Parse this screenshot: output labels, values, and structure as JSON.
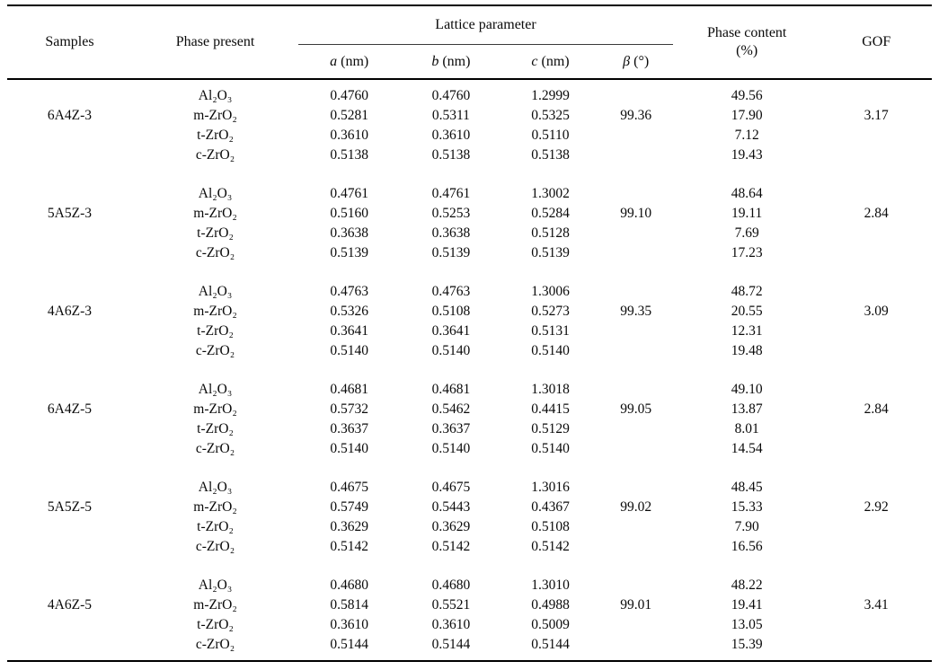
{
  "table": {
    "header": {
      "samples": "Samples",
      "phase_present": "Phase present",
      "lattice_group": "Lattice parameter",
      "lattice_cols": [
        {
          "symbol": "a",
          "unit": "(nm)"
        },
        {
          "symbol": "b",
          "unit": "(nm)"
        },
        {
          "symbol": "c",
          "unit": "(nm)"
        },
        {
          "symbol": "β",
          "unit": "(°)"
        }
      ],
      "phase_content_line1": "Phase content",
      "phase_content_line2": "(%)",
      "gof": "GOF"
    },
    "blocks": [
      {
        "sample": "6A4Z-3",
        "beta": "99.36",
        "gof": "3.17",
        "rows": [
          {
            "phase": "Al₂O₃",
            "a": "0.4760",
            "b": "0.4760",
            "c": "1.2999",
            "content": "49.56"
          },
          {
            "phase": "m-ZrO₂",
            "a": "0.5281",
            "b": "0.5311",
            "c": "0.5325",
            "content": "17.90"
          },
          {
            "phase": "t-ZrO₂",
            "a": "0.3610",
            "b": "0.3610",
            "c": "0.5110",
            "content": "7.12"
          },
          {
            "phase": "c-ZrO₂",
            "a": "0.5138",
            "b": "0.5138",
            "c": "0.5138",
            "content": "19.43"
          }
        ]
      },
      {
        "sample": "5A5Z-3",
        "beta": "99.10",
        "gof": "2.84",
        "rows": [
          {
            "phase": "Al₂O₃",
            "a": "0.4761",
            "b": "0.4761",
            "c": "1.3002",
            "content": "48.64"
          },
          {
            "phase": "m-ZrO₂",
            "a": "0.5160",
            "b": "0.5253",
            "c": "0.5284",
            "content": "19.11"
          },
          {
            "phase": "t-ZrO₂",
            "a": "0.3638",
            "b": "0.3638",
            "c": "0.5128",
            "content": "7.69"
          },
          {
            "phase": "c-ZrO₂",
            "a": "0.5139",
            "b": "0.5139",
            "c": "0.5139",
            "content": "17.23"
          }
        ]
      },
      {
        "sample": "4A6Z-3",
        "beta": "99.35",
        "gof": "3.09",
        "rows": [
          {
            "phase": "Al₂O₃",
            "a": "0.4763",
            "b": "0.4763",
            "c": "1.3006",
            "content": "48.72"
          },
          {
            "phase": "m-ZrO₂",
            "a": "0.5326",
            "b": "0.5108",
            "c": "0.5273",
            "content": "20.55"
          },
          {
            "phase": "t-ZrO₂",
            "a": "0.3641",
            "b": "0.3641",
            "c": "0.5131",
            "content": "12.31"
          },
          {
            "phase": "c-ZrO₂",
            "a": "0.5140",
            "b": "0.5140",
            "c": "0.5140",
            "content": "19.48"
          }
        ]
      },
      {
        "sample": "6A4Z-5",
        "beta": "99.05",
        "gof": "2.84",
        "rows": [
          {
            "phase": "Al₂O₃",
            "a": "0.4681",
            "b": "0.4681",
            "c": "1.3018",
            "content": "49.10"
          },
          {
            "phase": "m-ZrO₂",
            "a": "0.5732",
            "b": "0.5462",
            "c": "0.4415",
            "content": "13.87"
          },
          {
            "phase": "t-ZrO₂",
            "a": "0.3637",
            "b": "0.3637",
            "c": "0.5129",
            "content": "8.01"
          },
          {
            "phase": "c-ZrO₂",
            "a": "0.5140",
            "b": "0.5140",
            "c": "0.5140",
            "content": "14.54"
          }
        ]
      },
      {
        "sample": "5A5Z-5",
        "beta": "99.02",
        "gof": "2.92",
        "rows": [
          {
            "phase": "Al₂O₃",
            "a": "0.4675",
            "b": "0.4675",
            "c": "1.3016",
            "content": "48.45"
          },
          {
            "phase": "m-ZrO₂",
            "a": "0.5749",
            "b": "0.5443",
            "c": "0.4367",
            "content": "15.33"
          },
          {
            "phase": "t-ZrO₂",
            "a": "0.3629",
            "b": "0.3629",
            "c": "0.5108",
            "content": "7.90"
          },
          {
            "phase": "c-ZrO₂",
            "a": "0.5142",
            "b": "0.5142",
            "c": "0.5142",
            "content": "16.56"
          }
        ]
      },
      {
        "sample": "4A6Z-5",
        "beta": "99.01",
        "gof": "3.41",
        "rows": [
          {
            "phase": "Al₂O₃",
            "a": "0.4680",
            "b": "0.4680",
            "c": "1.3010",
            "content": "48.22"
          },
          {
            "phase": "m-ZrO₂",
            "a": "0.5814",
            "b": "0.5521",
            "c": "0.4988",
            "content": "19.41"
          },
          {
            "phase": "t-ZrO₂",
            "a": "0.3610",
            "b": "0.3610",
            "c": "0.5009",
            "content": "13.05"
          },
          {
            "phase": "c-ZrO₂",
            "a": "0.5144",
            "b": "0.5144",
            "c": "0.5144",
            "content": "15.39"
          }
        ]
      }
    ]
  }
}
